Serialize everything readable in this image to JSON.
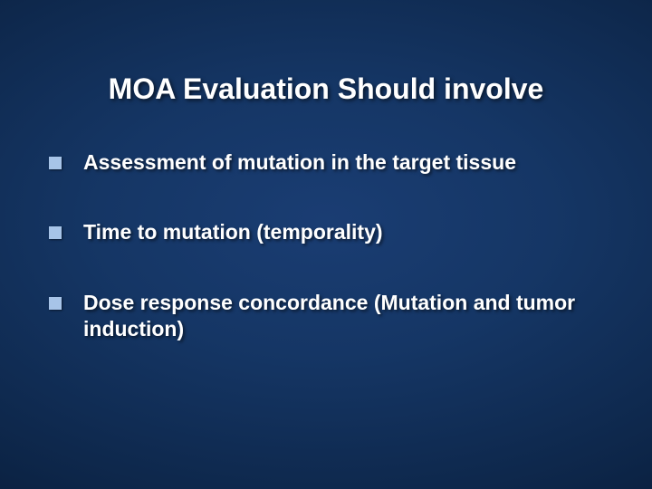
{
  "slide": {
    "title": "MOA Evaluation Should involve",
    "title_fontsize": 32,
    "title_color": "#ffffff",
    "bullets": [
      {
        "text": "Assessment of mutation in the target tissue"
      },
      {
        "text": "Time to mutation (temporality)"
      },
      {
        "text": "Dose response concordance (Mutation and tumor induction)"
      }
    ],
    "bullet_fontsize": 23,
    "bullet_color": "#ffffff",
    "bullet_marker_color": "#a7c4e8",
    "background": {
      "type": "radial-gradient",
      "inner_color": "#1a3d73",
      "mid_color": "#0d2649",
      "outer_color": "#020a1a"
    }
  }
}
